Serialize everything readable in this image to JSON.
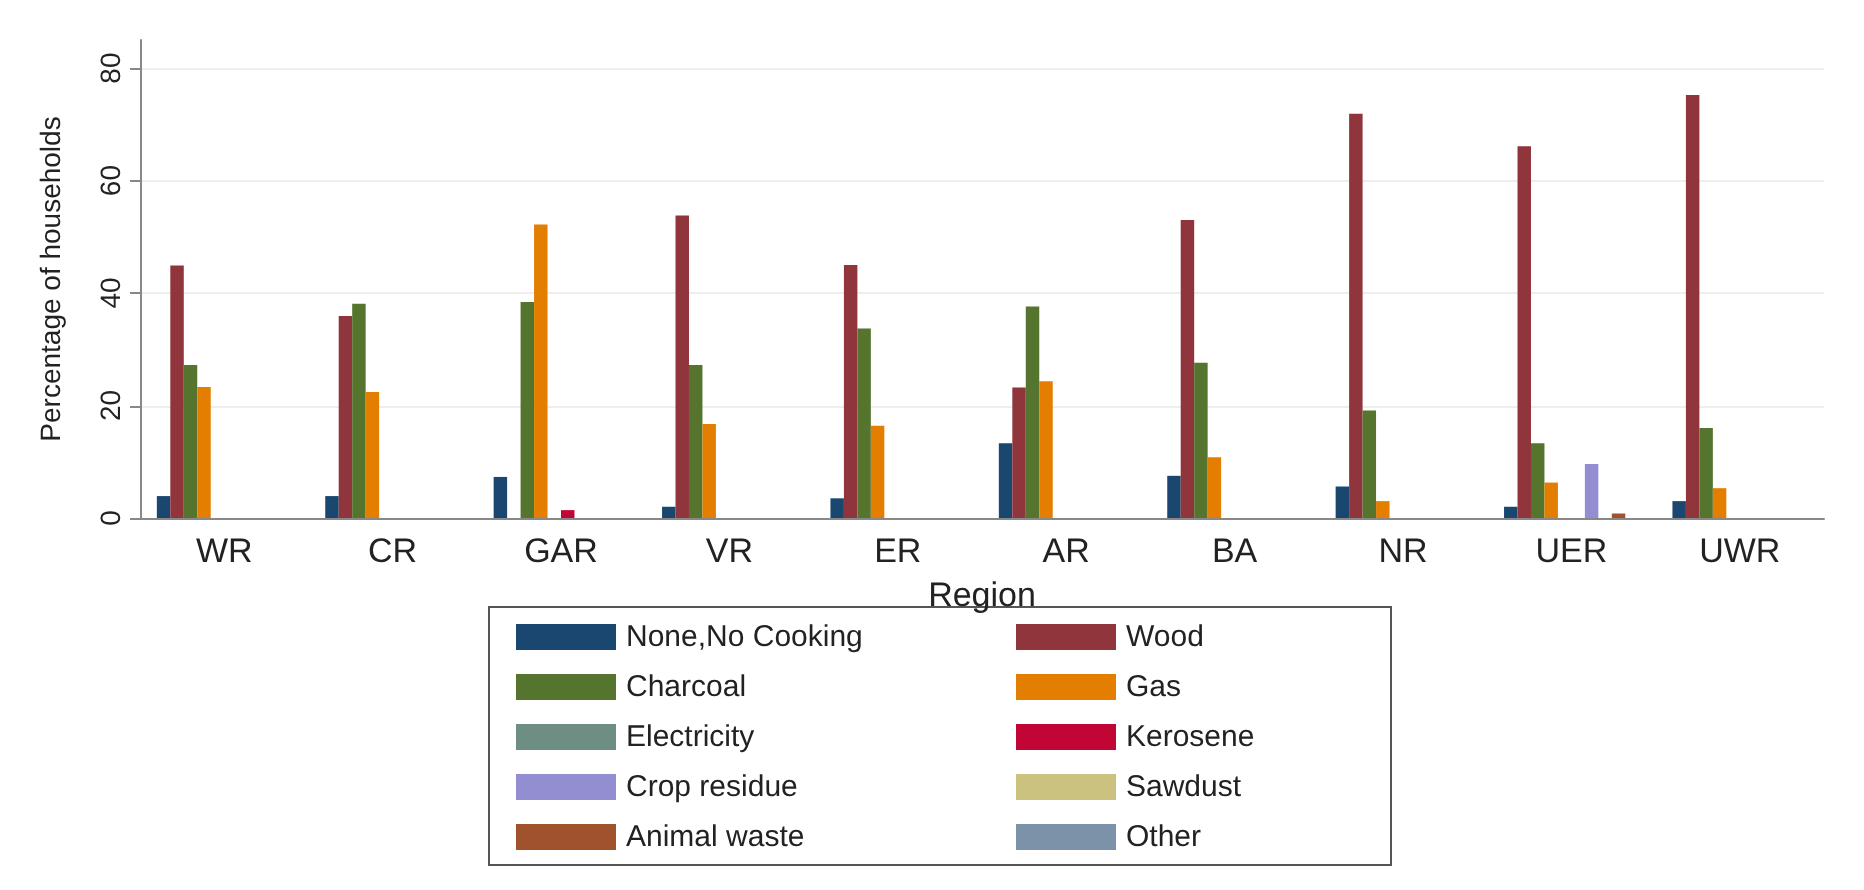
{
  "chart_data": {
    "type": "bar",
    "xlabel": "Region",
    "ylabel": "Percentage of households",
    "categories": [
      "WR",
      "CR",
      "GAR",
      "VR",
      "ER",
      "AR",
      "BA",
      "NR",
      "UER",
      "UWR"
    ],
    "series": [
      {
        "name": "None,No Cooking",
        "color": "#1a476f",
        "values": [
          3.9,
          3.9,
          7.3,
          2,
          3.5,
          13.3,
          7.5,
          5.6,
          2,
          3
        ]
      },
      {
        "name": "Wood",
        "color": "#90353b",
        "values": [
          44.9,
          35.9,
          0,
          53.8,
          45,
          23.2,
          53,
          71.9,
          66.1,
          75.2
        ]
      },
      {
        "name": "Charcoal",
        "color": "#55752f",
        "values": [
          27.2,
          38.1,
          38.4,
          27.2,
          33.7,
          37.6,
          27.6,
          19.1,
          13.3,
          16
        ]
      },
      {
        "name": "Gas",
        "color": "#e37e00",
        "values": [
          23.3,
          22.4,
          52.2,
          16.7,
          16.4,
          24.3,
          10.8,
          3,
          6.3,
          5.3
        ]
      },
      {
        "name": "Electricity",
        "color": "#6e8e84",
        "values": [
          0,
          0,
          0,
          0,
          0,
          0,
          0,
          0,
          0,
          0
        ]
      },
      {
        "name": "Kerosene",
        "color": "#c10534",
        "values": [
          0,
          0,
          1.4,
          0,
          0,
          0,
          0,
          0,
          0,
          0
        ]
      },
      {
        "name": "Crop residue",
        "color": "#938dd2",
        "values": [
          0,
          0,
          0,
          0,
          0,
          0,
          0,
          0,
          9.6,
          0
        ]
      },
      {
        "name": "Sawdust",
        "color": "#cac27e",
        "values": [
          0,
          0,
          0,
          0,
          0,
          0,
          0,
          0,
          0,
          0
        ]
      },
      {
        "name": "Animal waste",
        "color": "#a0522d",
        "values": [
          0,
          0,
          0,
          0,
          0,
          0,
          0,
          0,
          0.8,
          0
        ]
      },
      {
        "name": "Other",
        "color": "#7b92a8",
        "values": [
          0,
          0,
          0,
          0,
          0,
          0,
          0,
          0,
          0,
          0
        ]
      }
    ],
    "ylim": [
      0,
      85
    ],
    "yticks": [
      0,
      20,
      40,
      60,
      80
    ],
    "grid": "y",
    "legend": "bottom"
  }
}
